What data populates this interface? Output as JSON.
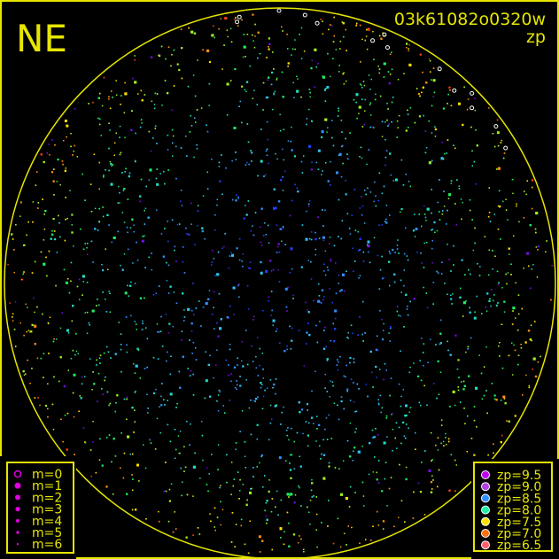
{
  "chart_data": {
    "type": "scatter",
    "title": "03k61082o0320w",
    "subtitle": "zp",
    "corner_label": "NE",
    "frame_color": "#e6e600",
    "background": "#000000",
    "size_legend": {
      "title": "",
      "entries": [
        "m=0",
        "m=1",
        "m=2",
        "m=3",
        "m=4",
        "m=5",
        "m=6"
      ],
      "mags": [
        0,
        1,
        2,
        3,
        4,
        5,
        6
      ],
      "marker_color": "#e000e0",
      "placement": "bottom-left"
    },
    "color_legend": {
      "entries": [
        "zp=9.5",
        "zp=9.0",
        "zp=8.5",
        "zp=8.0",
        "zp=7.5",
        "zp=7.0",
        "zp=6.5"
      ],
      "zp": [
        9.5,
        9.0,
        8.5,
        8.0,
        7.5,
        7.0,
        6.5
      ],
      "colors": [
        "#c000f0",
        "#b040e0",
        "#3090ff",
        "#20f0a0",
        "#ffe000",
        "#ff7010",
        "#ff6070"
      ],
      "placement": "bottom-right"
    },
    "trend": "zp higher (blue/cyan) near center, lower (green/yellow/orange) toward horizon"
  }
}
